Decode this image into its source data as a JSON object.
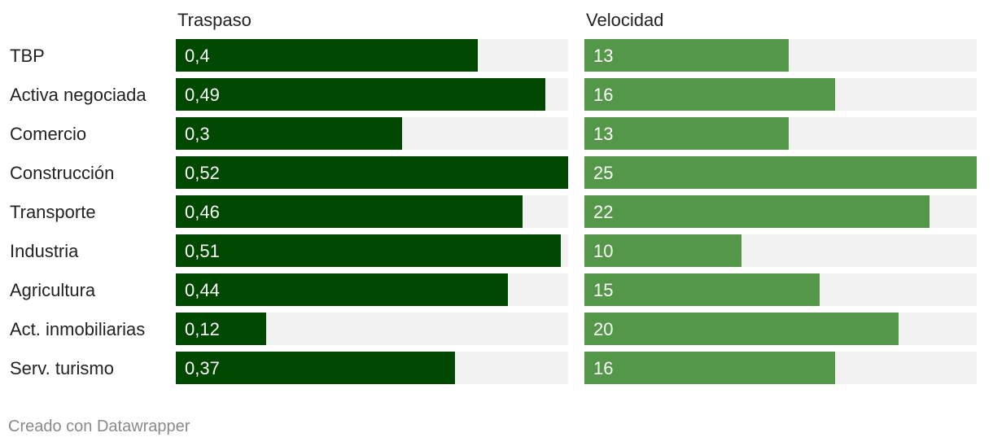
{
  "chart_data": {
    "type": "bar",
    "categories": [
      "TBP",
      "Activa negociada",
      "Comercio",
      "Construcción",
      "Transporte",
      "Industria",
      "Agricultura",
      "Act. inmobiliarias",
      "Serv. turismo"
    ],
    "series": [
      {
        "name": "Traspaso",
        "values": [
          0.4,
          0.49,
          0.3,
          0.52,
          0.46,
          0.51,
          0.44,
          0.12,
          0.37
        ],
        "labels": [
          "0,4",
          "0,49",
          "0,3",
          "0,52",
          "0,46",
          "0,51",
          "0,44",
          "0,12",
          "0,37"
        ],
        "color": "#004700",
        "max": 0.52
      },
      {
        "name": "Velocidad",
        "values": [
          13,
          16,
          13,
          25,
          22,
          10,
          15,
          20,
          16
        ],
        "labels": [
          "13",
          "16",
          "13",
          "25",
          "22",
          "10",
          "15",
          "20",
          "16"
        ],
        "color": "#559749",
        "max": 25
      }
    ],
    "track_color": "#f2f2f2",
    "title": "",
    "xlabel": "",
    "ylabel": "",
    "legend": "none",
    "grid": false
  },
  "footer": {
    "credit": "Creado con Datawrapper"
  }
}
